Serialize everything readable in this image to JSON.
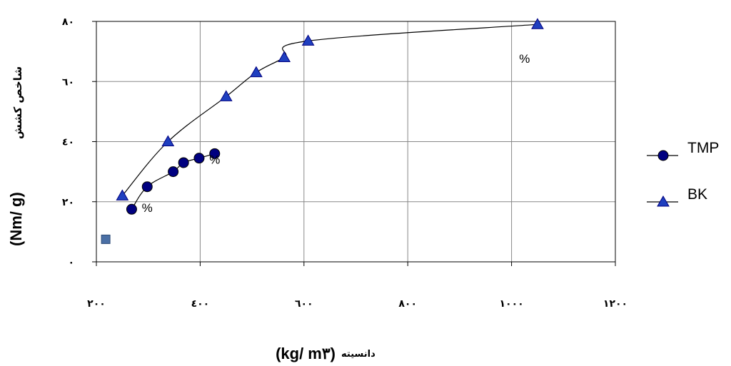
{
  "chart_data": {
    "type": "line",
    "x_axis": {
      "ticks": [
        200,
        400,
        600,
        800,
        1000,
        1200
      ],
      "tick_labels": [
        "۲۰۰",
        "٤۰۰",
        "٦۰۰",
        "۸۰۰",
        "۱۰۰۰",
        "۱۲۰۰"
      ],
      "range": [
        200,
        1200
      ],
      "label_latin": "(kg/ m۳)",
      "label_fa": "دانسیته"
    },
    "y_axis": {
      "ticks": [
        0,
        20,
        40,
        60,
        80
      ],
      "tick_labels": [
        "۰",
        "۲۰",
        "٤۰",
        "٦۰",
        "۸۰"
      ],
      "range": [
        0,
        80
      ],
      "label_latin": "(Nm/ g)",
      "label_fa": "شاخص کشش"
    },
    "grid": true,
    "legend_position": "right",
    "series": [
      {
        "name": "TMP",
        "marker": "circle",
        "color": "#000080",
        "points": [
          [
            268,
            17.5
          ],
          [
            298,
            25
          ],
          [
            348,
            30
          ],
          [
            368,
            33
          ],
          [
            398,
            34.5
          ],
          [
            428,
            36
          ]
        ]
      },
      {
        "name": "BK",
        "marker": "triangle",
        "color": "#1f3fbf",
        "points": [
          [
            250,
            22
          ],
          [
            338,
            40
          ],
          [
            450,
            55
          ],
          [
            508,
            63
          ],
          [
            562,
            68
          ],
          [
            608,
            73.5
          ],
          [
            1050,
            79
          ]
        ]
      }
    ],
    "extra_points": [
      {
        "marker": "square",
        "color": "#4a6fa5",
        "x": 218,
        "y": 7.5
      }
    ],
    "annotations": [
      {
        "text": "%",
        "x": 428,
        "y": 36
      },
      {
        "text": "%",
        "x": 298,
        "y": 20
      },
      {
        "text": "%",
        "x": 1025,
        "y": 69.5
      }
    ]
  }
}
